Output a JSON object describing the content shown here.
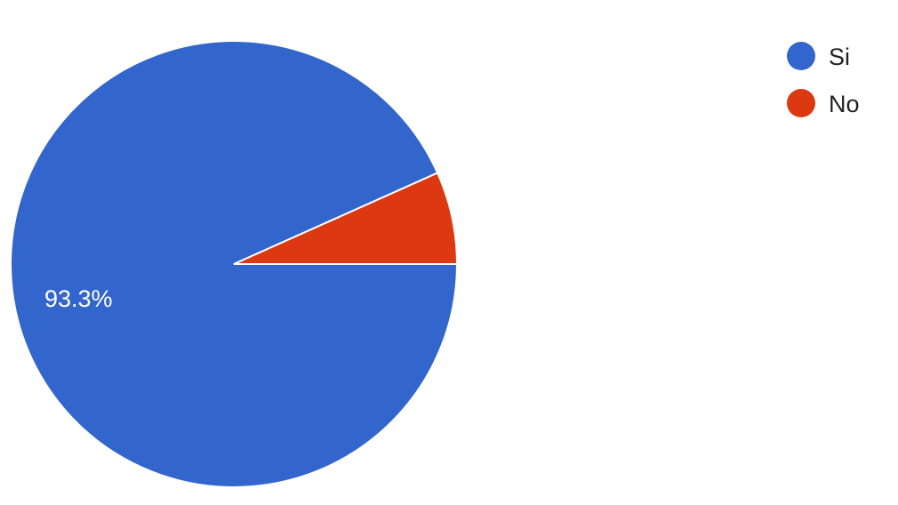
{
  "chart_data": {
    "type": "pie",
    "title": "",
    "slices": [
      {
        "label": "Si",
        "value": 93.3,
        "color": "#3366cc",
        "data_label": "93.3%"
      },
      {
        "label": "No",
        "value": 6.7,
        "color": "#dc3912",
        "data_label": ""
      }
    ],
    "legend_placement": "top-right"
  }
}
